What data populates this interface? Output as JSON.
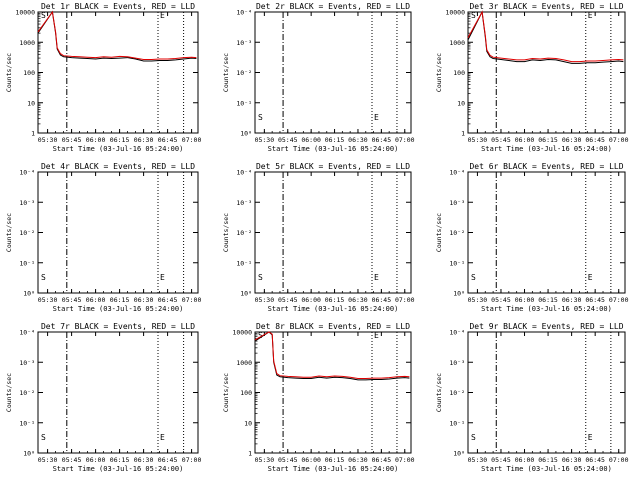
{
  "colors": {
    "events": "#000000",
    "lld": "#e00000",
    "axis": "#000000"
  },
  "xtick_labels": [
    "05:30",
    "05:45",
    "06:00",
    "06:15",
    "06:30",
    "06:45",
    "07:00"
  ],
  "xlabel": "Start Time (03-Jul-16 05:24:00)",
  "ylabel": "Counts/sec",
  "yticks_linear_small": [
    "10⁰",
    "10⁻¹",
    "10⁻²",
    "10⁻³",
    "10⁻⁴"
  ],
  "yticks_log_counts": [
    "1",
    "10",
    "100",
    "1000",
    "10000"
  ],
  "marker_labels": {
    "start": "S",
    "end": "E"
  },
  "chart_data": [
    {
      "type": "line",
      "title": "Det 1r BLACK = Events, RED = LLD",
      "xlabel": "Start Time (03-Jul-16 05:24:00)",
      "ylabel": "Counts/sec",
      "yscale": "log",
      "ylim": [
        1,
        10000
      ],
      "series": [
        {
          "name": "Events",
          "x": [
            "05:24",
            "05:33",
            "05:35",
            "05:36",
            "05:38",
            "05:40",
            "05:45",
            "05:50",
            "05:55",
            "06:00",
            "06:05",
            "06:10",
            "06:15",
            "06:20",
            "06:25",
            "06:30",
            "06:35",
            "06:40",
            "06:45",
            "06:50",
            "06:55",
            "07:00",
            "07:03"
          ],
          "values": [
            2000,
            10000,
            2000,
            600,
            380,
            330,
            310,
            300,
            290,
            280,
            300,
            290,
            300,
            310,
            280,
            240,
            240,
            250,
            250,
            260,
            280,
            300,
            290
          ]
        },
        {
          "name": "LLD",
          "x": [
            "05:24",
            "05:33",
            "05:35",
            "05:36",
            "05:38",
            "05:40",
            "05:45",
            "05:50",
            "05:55",
            "06:00",
            "06:05",
            "06:10",
            "06:15",
            "06:20",
            "06:25",
            "06:30",
            "06:35",
            "06:40",
            "06:45",
            "06:50",
            "06:55",
            "07:00",
            "07:03"
          ],
          "values": [
            2200,
            10000,
            2200,
            650,
            420,
            360,
            340,
            330,
            320,
            310,
            330,
            320,
            340,
            330,
            300,
            270,
            270,
            280,
            280,
            290,
            310,
            320,
            310
          ]
        }
      ]
    },
    {
      "type": "line",
      "title": "Det 2r BLACK = Events, RED = LLD",
      "xlabel": "Start Time (03-Jul-16 05:24:00)",
      "ylabel": "Counts/sec",
      "yscale": "linear",
      "ylim": [
        0,
        0.0001
      ],
      "series": []
    },
    {
      "type": "line",
      "title": "Det 3r BLACK = Events, RED = LLD",
      "xlabel": "Start Time (03-Jul-16 05:24:00)",
      "ylabel": "Counts/sec",
      "yscale": "log",
      "ylim": [
        1,
        10000
      ],
      "series": [
        {
          "name": "Events",
          "x": [
            "05:24",
            "05:33",
            "05:35",
            "05:36",
            "05:38",
            "05:40",
            "05:45",
            "05:50",
            "05:55",
            "06:00",
            "06:05",
            "06:10",
            "06:15",
            "06:20",
            "06:25",
            "06:30",
            "06:35",
            "06:40",
            "06:45",
            "06:50",
            "06:55",
            "07:00",
            "07:03"
          ],
          "values": [
            1200,
            10000,
            1500,
            500,
            330,
            290,
            270,
            250,
            230,
            230,
            260,
            250,
            270,
            260,
            230,
            200,
            200,
            210,
            210,
            220,
            230,
            240,
            230
          ]
        },
        {
          "name": "LLD",
          "x": [
            "05:24",
            "05:33",
            "05:35",
            "05:36",
            "05:38",
            "05:40",
            "05:45",
            "05:50",
            "05:55",
            "06:00",
            "06:05",
            "06:10",
            "06:15",
            "06:20",
            "06:25",
            "06:30",
            "06:35",
            "06:40",
            "06:45",
            "06:50",
            "06:55",
            "07:00",
            "07:03"
          ],
          "values": [
            1400,
            10000,
            1700,
            560,
            370,
            320,
            300,
            280,
            260,
            260,
            290,
            280,
            300,
            290,
            260,
            230,
            230,
            240,
            240,
            250,
            260,
            270,
            260
          ]
        }
      ]
    },
    {
      "type": "line",
      "title": "Det 4r BLACK = Events, RED = LLD",
      "xlabel": "Start Time (03-Jul-16 05:24:00)",
      "ylabel": "Counts/sec",
      "yscale": "linear",
      "ylim": [
        0,
        0.0001
      ],
      "series": []
    },
    {
      "type": "line",
      "title": "Det 5r BLACK = Events, RED = LLD",
      "xlabel": "Start Time (03-Jul-16 05:24:00)",
      "ylabel": "Counts/sec",
      "yscale": "linear",
      "ylim": [
        0,
        0.0001
      ],
      "series": []
    },
    {
      "type": "line",
      "title": "Det 6r BLACK = Events, RED = LLD",
      "xlabel": "Start Time (03-Jul-16 05:24:00)",
      "ylabel": "Counts/sec",
      "yscale": "linear",
      "ylim": [
        0,
        0.0001
      ],
      "series": []
    },
    {
      "type": "line",
      "title": "Det 7r BLACK = Events, RED = LLD",
      "xlabel": "Start Time (03-Jul-16 05:24:00)",
      "ylabel": "Counts/sec",
      "yscale": "linear",
      "ylim": [
        0,
        0.0001
      ],
      "series": []
    },
    {
      "type": "line",
      "title": "Det 8r BLACK = Events, RED = LLD",
      "xlabel": "Start Time (03-Jul-16 05:24:00)",
      "ylabel": "Counts/sec",
      "yscale": "log",
      "ylim": [
        1,
        10000
      ],
      "series": [
        {
          "name": "Events",
          "x": [
            "05:24",
            "05:33",
            "05:35",
            "05:36",
            "05:38",
            "05:40",
            "05:45",
            "05:50",
            "05:55",
            "06:00",
            "06:05",
            "06:10",
            "06:15",
            "06:20",
            "06:25",
            "06:30",
            "06:35",
            "06:40",
            "06:45",
            "06:50",
            "06:55",
            "07:00",
            "07:03"
          ],
          "values": [
            5000,
            10000,
            8000,
            1000,
            380,
            330,
            310,
            300,
            290,
            290,
            320,
            300,
            320,
            310,
            290,
            260,
            260,
            270,
            270,
            280,
            300,
            310,
            300
          ]
        },
        {
          "name": "LLD",
          "x": [
            "05:24",
            "05:33",
            "05:35",
            "05:36",
            "05:38",
            "05:40",
            "05:45",
            "05:50",
            "05:55",
            "06:00",
            "06:05",
            "06:10",
            "06:15",
            "06:20",
            "06:25",
            "06:30",
            "06:35",
            "06:40",
            "06:45",
            "06:50",
            "06:55",
            "07:00",
            "07:03"
          ],
          "values": [
            5500,
            10000,
            8500,
            1100,
            420,
            360,
            340,
            330,
            320,
            320,
            350,
            330,
            350,
            340,
            320,
            290,
            290,
            300,
            300,
            310,
            330,
            340,
            330
          ]
        }
      ]
    },
    {
      "type": "line",
      "title": "Det 9r BLACK = Events, RED = LLD",
      "xlabel": "Start Time (03-Jul-16 05:24:00)",
      "ylabel": "Counts/sec",
      "yscale": "linear",
      "ylim": [
        0,
        0.0001
      ],
      "series": []
    }
  ]
}
